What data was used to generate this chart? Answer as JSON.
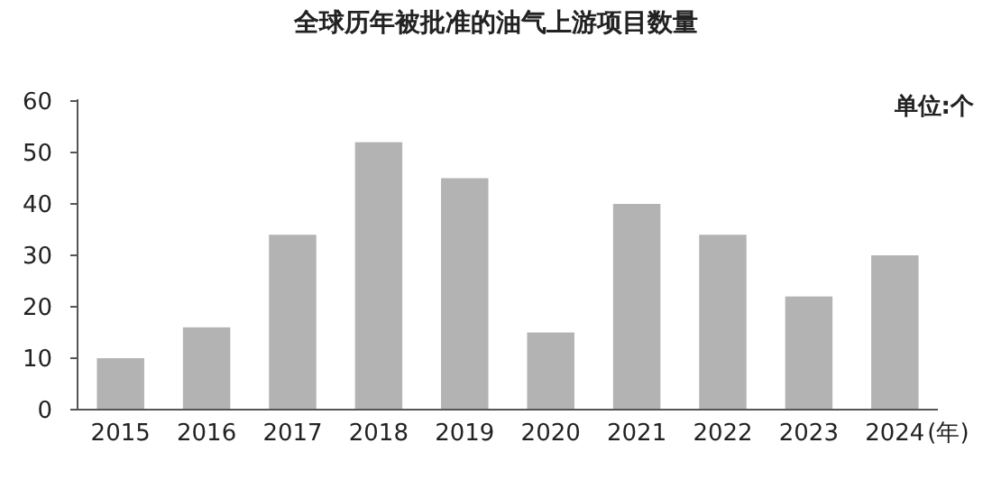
{
  "chart_data": {
    "type": "bar",
    "title": "全球历年被批准的油气上游项目数量",
    "ylabel": "单位:个",
    "xlabel": "(年)",
    "categories": [
      "2015",
      "2016",
      "2017",
      "2018",
      "2019",
      "2020",
      "2021",
      "2022",
      "2023",
      "2024"
    ],
    "values": [
      10,
      16,
      34,
      52,
      45,
      15,
      40,
      34,
      22,
      30
    ],
    "color": "#b3b3b3",
    "ylim": [
      0,
      60
    ],
    "yticks": [
      0,
      10,
      20,
      30,
      40,
      50,
      60
    ],
    "grid": false
  }
}
